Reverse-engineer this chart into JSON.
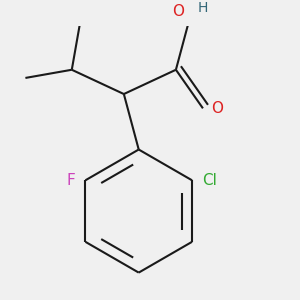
{
  "background_color": "#f0f0f0",
  "bond_color": "#1a1a1a",
  "bond_width": 1.5,
  "atom_labels": {
    "F": {
      "text": "F",
      "color": "#cc44bb",
      "fontsize": 11,
      "fontweight": "normal"
    },
    "Cl": {
      "text": "Cl",
      "color": "#33aa33",
      "fontsize": 11,
      "fontweight": "normal"
    },
    "O": {
      "text": "O",
      "color": "#dd2222",
      "fontsize": 11,
      "fontweight": "normal"
    },
    "OH_O": {
      "text": "O",
      "color": "#dd2222",
      "fontsize": 11,
      "fontweight": "normal"
    },
    "H": {
      "text": "H",
      "color": "#336677",
      "fontsize": 10,
      "fontweight": "normal"
    }
  },
  "fig_width": 3.0,
  "fig_height": 3.0,
  "dpi": 100
}
